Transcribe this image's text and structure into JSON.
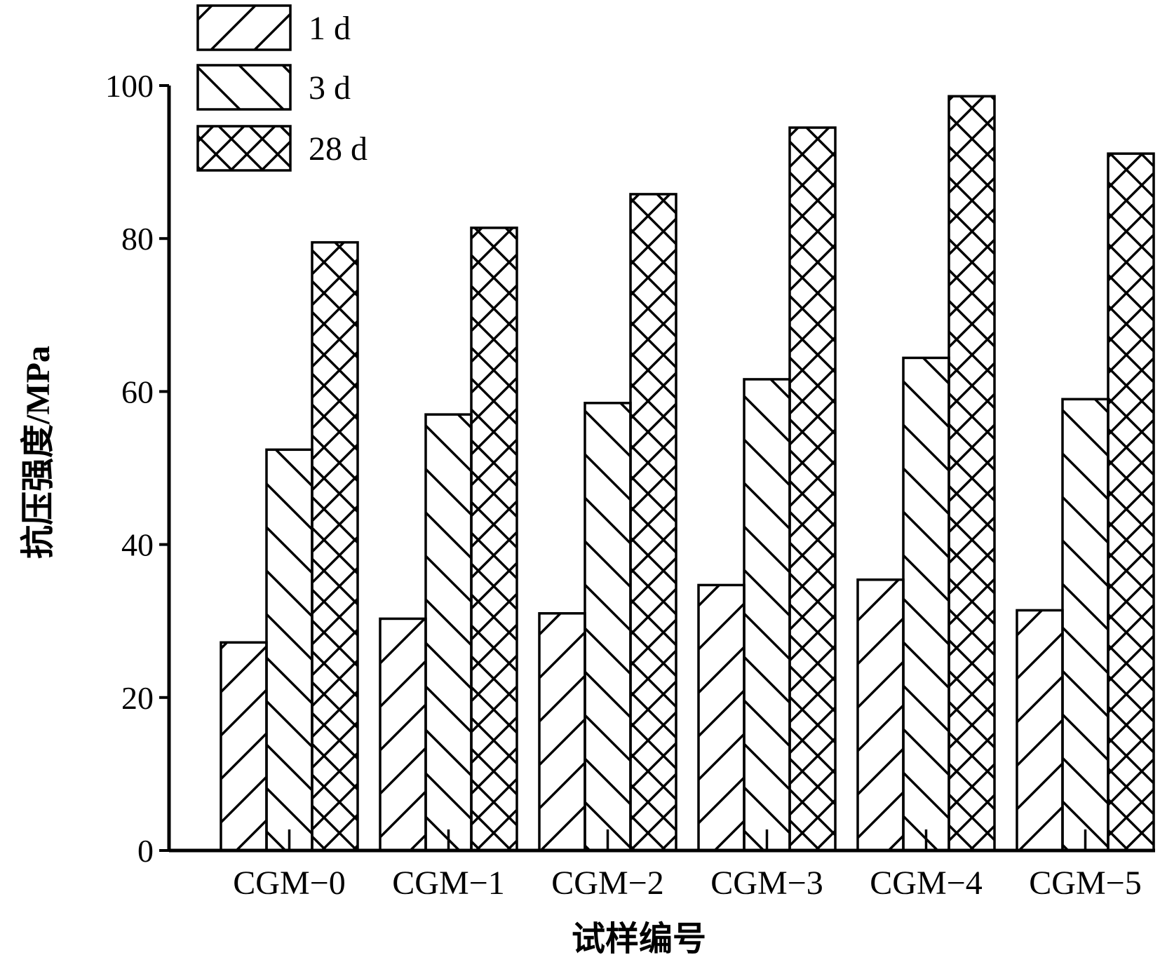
{
  "chart_data": {
    "type": "bar",
    "title": "",
    "xlabel": "试样编号",
    "ylabel": "抗压强度/MPa",
    "ylim": [
      0,
      100
    ],
    "yticks": [
      "0",
      "20",
      "40",
      "60",
      "80",
      "100"
    ],
    "categories": [
      "CGM−0",
      "CGM−1",
      "CGM−2",
      "CGM−3",
      "CGM−4",
      "CGM−5"
    ],
    "legend_position": "top-left",
    "series": [
      {
        "name": "1 d",
        "pattern": "forward-hatch",
        "values": [
          27.2,
          30.3,
          31.0,
          34.7,
          35.4,
          31.4
        ]
      },
      {
        "name": "3 d",
        "pattern": "back-hatch",
        "values": [
          52.4,
          57.0,
          58.5,
          61.6,
          64.4,
          59.0
        ]
      },
      {
        "name": "28 d",
        "pattern": "cross-hatch",
        "values": [
          79.5,
          81.4,
          85.8,
          94.5,
          98.6,
          91.1
        ]
      }
    ],
    "grid": false
  }
}
